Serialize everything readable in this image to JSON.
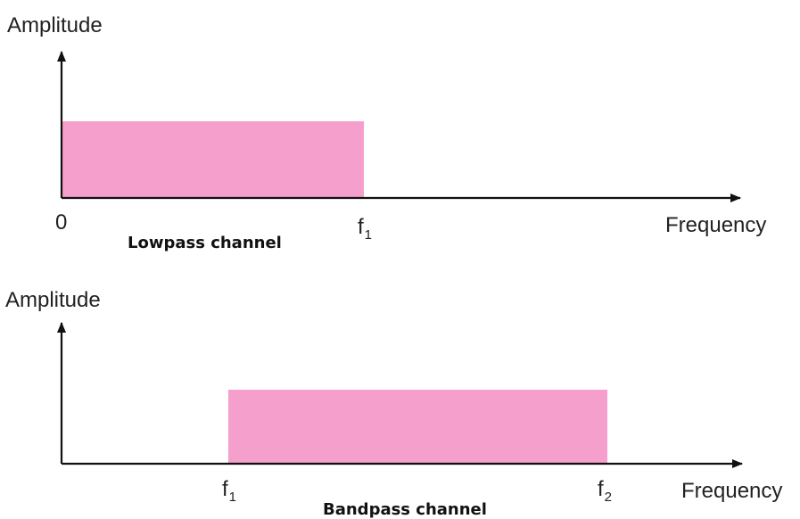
{
  "colors": {
    "band_fill": "#f59fcc",
    "axis": "#111111"
  },
  "top_panel": {
    "y_axis_label": "Amplitude",
    "x_axis_label": "Frequency",
    "origin_label": "0",
    "edge_label": {
      "base": "f",
      "sub": "1"
    },
    "caption": "Lowpass channel"
  },
  "bottom_panel": {
    "y_axis_label": "Amplitude",
    "x_axis_label": "Frequency",
    "left_edge_label": {
      "base": "f",
      "sub": "1"
    },
    "right_edge_label": {
      "base": "f",
      "sub": "2"
    },
    "caption": "Bandpass channel"
  }
}
